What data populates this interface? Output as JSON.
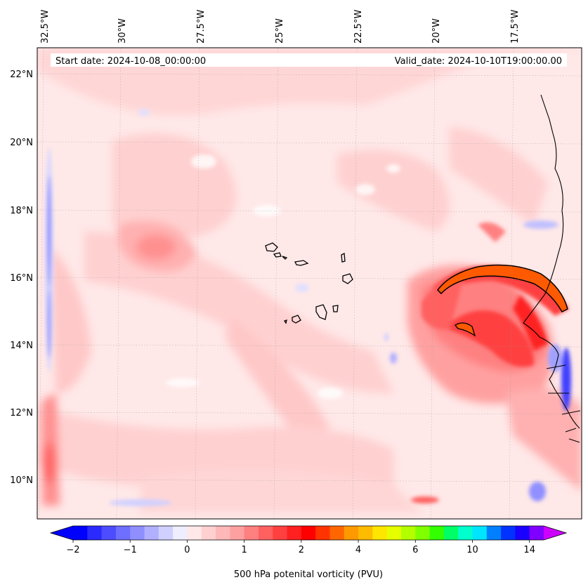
{
  "header": {
    "start_date": "Start date: 2024-10-08_00:00:00",
    "valid_date": "Valid_date: 2024-10-10T19:00:00.00"
  },
  "axes": {
    "lon_labels": [
      "32.5°W",
      "30°W",
      "27.5°W",
      "25°W",
      "22.5°W",
      "20°W",
      "17.5°W"
    ],
    "lat_labels": [
      "22°N",
      "20°N",
      "18°N",
      "16°N",
      "14°N",
      "12°N",
      "10°N"
    ]
  },
  "colorbar": {
    "label": "500 hPa potenital vorticity (PVU)",
    "ticks": [
      "−2",
      "−1",
      "0",
      "1",
      "2",
      "4",
      "6",
      "10",
      "14"
    ],
    "colors": [
      "#0000ff",
      "#2a2aff",
      "#4d4dff",
      "#6e6eff",
      "#8f8fff",
      "#b0b0ff",
      "#d0d0ff",
      "#eeeeff",
      "#ffe8e8",
      "#ffd0d0",
      "#ffb8b8",
      "#ffa0a0",
      "#ff8080",
      "#ff6060",
      "#ff4040",
      "#ff2020",
      "#ff0000",
      "#ff3300",
      "#ff6600",
      "#ff9900",
      "#ffbb00",
      "#ffe600",
      "#e5ff00",
      "#b3ff00",
      "#80ff00",
      "#33ff00",
      "#00ff66",
      "#00ffcc",
      "#00e5ff",
      "#0080ff",
      "#0033ff",
      "#1a00ff",
      "#8000ff"
    ],
    "extend_low_color": "#0000ff",
    "extend_high_color": "#cc00ff"
  },
  "map_colors": {
    "background": "#ffe8e8",
    "light_pink": "#ffd0d0",
    "pink": "#ffb8b8",
    "red_mid": "#ff8080",
    "red_strong": "#ff3030",
    "orange": "#ff5a00",
    "blue_light": "#d0d0ff",
    "blue": "#6060ff"
  }
}
